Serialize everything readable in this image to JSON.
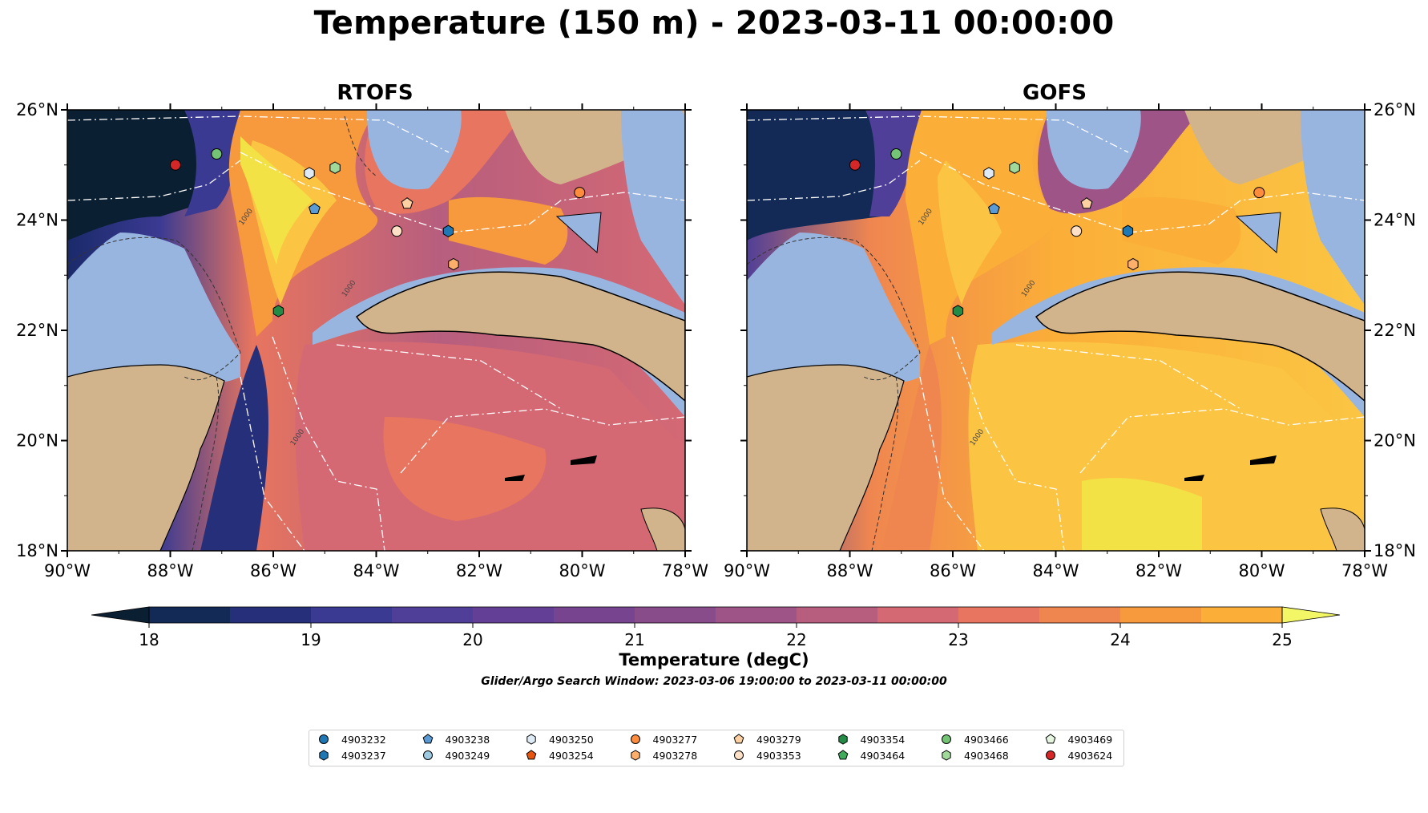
{
  "title": "Temperature (150 m) - 2023-03-11 00:00:00",
  "panels": [
    {
      "id": "rtofs",
      "title": "RTOFS"
    },
    {
      "id": "gofs",
      "title": "GOFS"
    }
  ],
  "map": {
    "lon_range": [
      -90,
      -78
    ],
    "lat_range": [
      18,
      26
    ],
    "lon_ticks": [
      "90°W",
      "88°W",
      "86°W",
      "84°W",
      "82°W",
      "80°W",
      "78°W"
    ],
    "lat_ticks": [
      "18°N",
      "20°N",
      "22°N",
      "24°N",
      "26°N"
    ],
    "contour_label": "1000",
    "colors": {
      "land": "#d2b48c",
      "shelf": "#98b5e0",
      "coast": "#000000",
      "tracks": "#ffffff"
    }
  },
  "colorbar": {
    "min": 18,
    "max": 25,
    "tick_labels": [
      "18",
      "19",
      "20",
      "21",
      "22",
      "23",
      "24",
      "25"
    ],
    "label": "Temperature (degC)",
    "extend": "both",
    "colors": [
      "#0b1f33",
      "#122a55",
      "#262f7a",
      "#3b3a92",
      "#503f98",
      "#633f95",
      "#774590",
      "#894c8b",
      "#9e5486",
      "#b75e7e",
      "#d46974",
      "#e7755f",
      "#ef8650",
      "#f7993d",
      "#fbae38",
      "#fbc543",
      "#f3e245"
    ]
  },
  "search_window": "Glider/Argo Search Window: 2023-03-06 19:00:00 to 2023-03-11 00:00:00",
  "argo_floats": [
    {
      "id": "4903232",
      "marker": "circle",
      "color": "#1f77b4"
    },
    {
      "id": "4903237",
      "marker": "hexagon",
      "color": "#1f77b4"
    },
    {
      "id": "4903238",
      "marker": "pentagon",
      "color": "#5b9bd5"
    },
    {
      "id": "4903249",
      "marker": "circle",
      "color": "#9ecae1"
    },
    {
      "id": "4903250",
      "marker": "hexagon",
      "color": "#deebf7"
    },
    {
      "id": "4903254",
      "marker": "pentagon",
      "color": "#e6550d"
    },
    {
      "id": "4903277",
      "marker": "circle",
      "color": "#fd8d3c"
    },
    {
      "id": "4903278",
      "marker": "hexagon",
      "color": "#fdae6b"
    },
    {
      "id": "4903279",
      "marker": "pentagon",
      "color": "#fdd0a2"
    },
    {
      "id": "4903353",
      "marker": "circle",
      "color": "#fde0c5"
    },
    {
      "id": "4903354",
      "marker": "hexagon",
      "color": "#238b45"
    },
    {
      "id": "4903464",
      "marker": "pentagon",
      "color": "#41ab5d"
    },
    {
      "id": "4903466",
      "marker": "circle",
      "color": "#74c476"
    },
    {
      "id": "4903468",
      "marker": "hexagon",
      "color": "#a1d99b"
    },
    {
      "id": "4903469",
      "marker": "pentagon",
      "color": "#e5f5e0"
    },
    {
      "id": "4903624",
      "marker": "circle",
      "color": "#d62728"
    }
  ],
  "float_positions": [
    {
      "id": "4903624",
      "lon": -87.9,
      "lat": 25.0
    },
    {
      "id": "4903466",
      "lon": -87.1,
      "lat": 25.2
    },
    {
      "id": "4903250",
      "lon": -85.3,
      "lat": 24.85
    },
    {
      "id": "4903468",
      "lon": -84.8,
      "lat": 24.95
    },
    {
      "id": "4903238",
      "lon": -85.2,
      "lat": 24.2
    },
    {
      "id": "4903279",
      "lon": -83.4,
      "lat": 24.3
    },
    {
      "id": "4903353",
      "lon": -83.6,
      "lat": 23.8
    },
    {
      "id": "4903237",
      "lon": -82.6,
      "lat": 23.8
    },
    {
      "id": "4903278",
      "lon": -82.5,
      "lat": 23.2
    },
    {
      "id": "4903277",
      "lon": -80.05,
      "lat": 24.5
    },
    {
      "id": "4903354",
      "lon": -85.9,
      "lat": 22.35
    }
  ]
}
